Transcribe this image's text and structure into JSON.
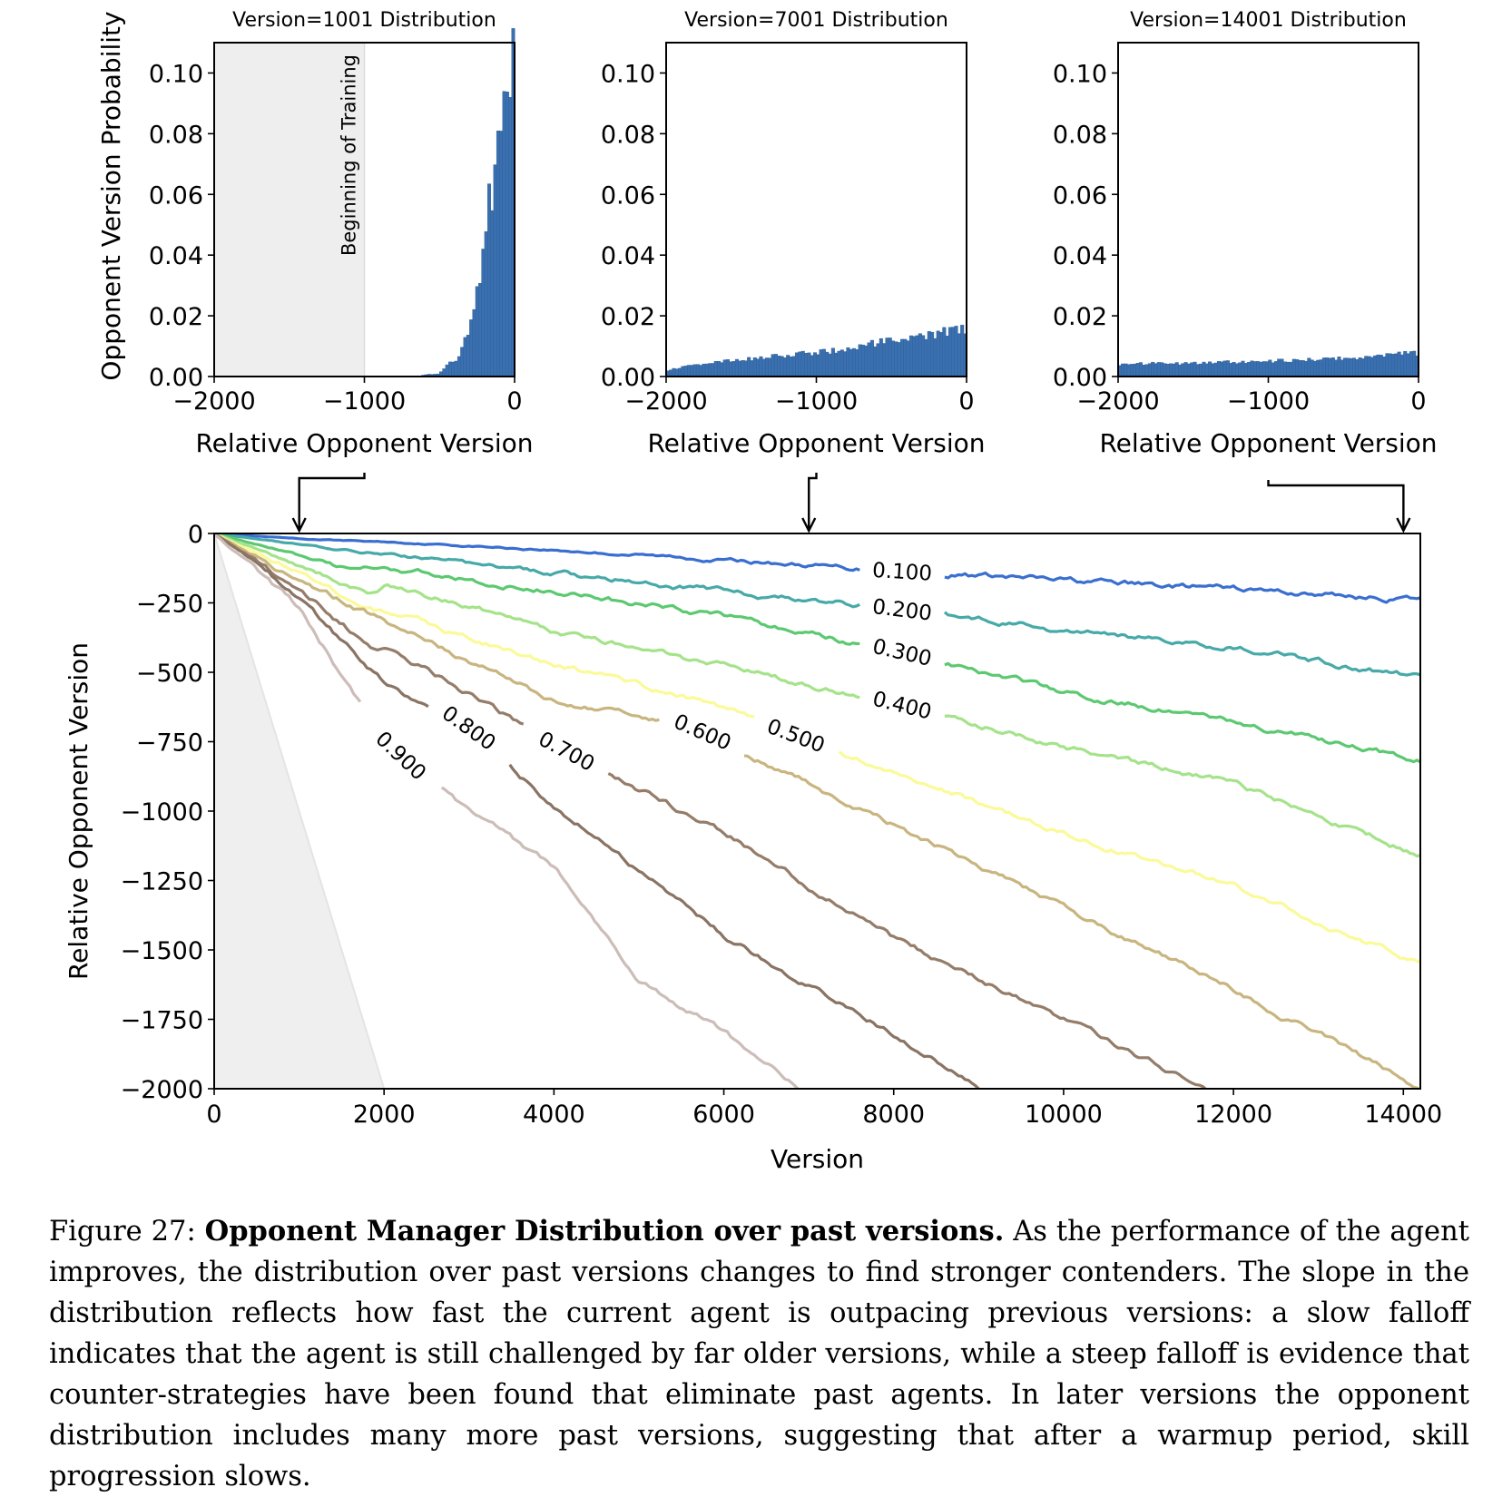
{
  "chart_data": [
    {
      "type": "bar",
      "title": "Version=1001 Distribution",
      "xlabel": "Relative Opponent Version",
      "ylabel": "Opponent Version Probability",
      "xlim": [
        -2000,
        0
      ],
      "ylim": [
        0,
        0.11
      ],
      "xticks": [
        "−2000",
        "−1000",
        "0"
      ],
      "yticks": [
        "0.00",
        "0.02",
        "0.04",
        "0.06",
        "0.08",
        "0.10"
      ],
      "bar_color": "#3a70b0",
      "shaded_region": {
        "x": [
          -2000,
          -1000
        ],
        "label": "Beginning of Training"
      },
      "x": [
        -1000,
        -600,
        -550,
        -500,
        -480,
        -460,
        -440,
        -420,
        -400,
        -380,
        -360,
        -340,
        -320,
        -300,
        -280,
        -260,
        -240,
        -220,
        -200,
        -180,
        -160,
        -140,
        -120,
        -100,
        -80,
        -60,
        -40,
        -20
      ],
      "values": [
        0.0,
        0.0005,
        0.0008,
        0.001,
        0.002,
        0.003,
        0.004,
        0.005,
        0.005,
        0.006,
        0.008,
        0.01,
        0.013,
        0.017,
        0.022,
        0.028,
        0.035,
        0.032,
        0.045,
        0.058,
        0.057,
        0.06,
        0.066,
        0.08,
        0.09,
        0.092,
        0.095,
        0.104
      ]
    },
    {
      "type": "bar",
      "title": "Version=7001 Distribution",
      "xlabel": "Relative Opponent Version",
      "xlim": [
        -2000,
        0
      ],
      "ylim": [
        0,
        0.11
      ],
      "xticks": [
        "−2000",
        "−1000",
        "0"
      ],
      "yticks": [
        "0.00",
        "0.02",
        "0.04",
        "0.06",
        "0.08",
        "0.10"
      ],
      "bar_color": "#3a70b0",
      "x": [
        -2000,
        -1800,
        -1600,
        -1400,
        -1200,
        -1000,
        -800,
        -600,
        -400,
        -200,
        -20
      ],
      "values": [
        0.002,
        0.004,
        0.005,
        0.006,
        0.007,
        0.008,
        0.009,
        0.011,
        0.012,
        0.014,
        0.016
      ]
    },
    {
      "type": "bar",
      "title": "Version=14001 Distribution",
      "xlabel": "Relative Opponent Version",
      "xlim": [
        -2000,
        0
      ],
      "ylim": [
        0,
        0.11
      ],
      "xticks": [
        "−2000",
        "−1000",
        "0"
      ],
      "yticks": [
        "0.00",
        "0.02",
        "0.04",
        "0.06",
        "0.08",
        "0.10"
      ],
      "bar_color": "#3a70b0",
      "x": [
        -2000,
        -1500,
        -1000,
        -500,
        -20
      ],
      "values": [
        0.004,
        0.0045,
        0.005,
        0.006,
        0.0078
      ]
    },
    {
      "type": "line",
      "subtype": "contour",
      "xlabel": "Version",
      "ylabel": "Relative Opponent Version",
      "xlim": [
        0,
        14200
      ],
      "ylim": [
        -2000,
        0
      ],
      "xticks": [
        "0",
        "2000",
        "4000",
        "6000",
        "8000",
        "10000",
        "12000",
        "14000"
      ],
      "yticks": [
        "0",
        "−250",
        "−500",
        "−750",
        "−1000",
        "−1250",
        "−1500",
        "−1750",
        "−2000"
      ],
      "shaded_region": {
        "x": [
          0,
          2000
        ],
        "y": [
          0,
          -2000
        ]
      },
      "pointers": [
        1001,
        7001,
        14001
      ],
      "series": [
        {
          "name": "0.100",
          "color": "#3a6fd0",
          "label_x": 8100,
          "x": [
            0,
            1000,
            2000,
            4000,
            6000,
            8000,
            10000,
            12000,
            14200
          ],
          "y": [
            0,
            -20,
            -30,
            -60,
            -95,
            -135,
            -170,
            -200,
            -240
          ]
        },
        {
          "name": "0.200",
          "color": "#47aaa8",
          "label_x": 8100,
          "x": [
            0,
            1000,
            2000,
            4000,
            6000,
            8000,
            10000,
            12000,
            14200
          ],
          "y": [
            0,
            -40,
            -75,
            -140,
            -210,
            -270,
            -350,
            -410,
            -520
          ]
        },
        {
          "name": "0.300",
          "color": "#5cc971",
          "label_x": 8100,
          "x": [
            0,
            1000,
            1700,
            2000,
            4000,
            6000,
            8000,
            10000,
            12000,
            14200
          ],
          "y": [
            0,
            -80,
            -140,
            -120,
            -210,
            -300,
            -420,
            -570,
            -680,
            -820
          ]
        },
        {
          "name": "0.400",
          "color": "#a5e38b",
          "label_x": 8100,
          "x": [
            0,
            1000,
            1800,
            2000,
            4000,
            6000,
            8000,
            10000,
            12000,
            14200
          ],
          "y": [
            0,
            -110,
            -200,
            -180,
            -350,
            -480,
            -610,
            -770,
            -900,
            -1160
          ]
        },
        {
          "name": "0.500",
          "color": "#fafa9a",
          "label_x": 6850,
          "x": [
            0,
            1000,
            1800,
            2000,
            4000,
            6000,
            8000,
            10000,
            12000,
            14200
          ],
          "y": [
            0,
            -140,
            -260,
            -280,
            -470,
            -630,
            -860,
            -1080,
            -1270,
            -1550
          ]
        },
        {
          "name": "0.600",
          "color": "#c8b57f",
          "label_x": 5750,
          "x": [
            0,
            1000,
            1900,
            2000,
            4000,
            5500,
            6000,
            8000,
            10000,
            12000,
            14200
          ],
          "y": [
            0,
            -170,
            -300,
            -320,
            -600,
            -680,
            -750,
            -1050,
            -1350,
            -1640,
            -2000
          ]
        },
        {
          "name": "0.700",
          "color": "#957d6a",
          "label_x": 4150,
          "x": [
            0,
            1000,
            1900,
            2000,
            4000,
            6000,
            8000,
            10000,
            11700
          ],
          "y": [
            0,
            -200,
            -420,
            -400,
            -760,
            -1080,
            -1460,
            -1750,
            -2000
          ]
        },
        {
          "name": "0.800",
          "color": "#8a7464",
          "label_x": 3000,
          "x": [
            0,
            1000,
            2000,
            3000,
            4000,
            6000,
            8000,
            9000
          ],
          "y": [
            0,
            -230,
            -540,
            -700,
            -980,
            -1450,
            -1800,
            -2000
          ]
        },
        {
          "name": "0.900",
          "color": "#ccbdb9",
          "label_x": 2200,
          "x": [
            0,
            1000,
            2000,
            3000,
            4000,
            5000,
            6000,
            6900
          ],
          "y": [
            0,
            -270,
            -750,
            -1000,
            -1200,
            -1600,
            -1800,
            -2000
          ]
        }
      ]
    }
  ],
  "caption": {
    "label": "Figure 27:",
    "title": "Opponent Manager Distribution over past versions.",
    "text": "As the performance of the agent improves, the distribution over past versions changes to find stronger contenders. The slope in the distribution reflects how fast the current agent is outpacing previous versions: a slow falloff indicates that the agent is still challenged by far older versions, while a steep falloff is evidence that counter-strategies have been found that eliminate past agents. In later versions the opponent distribution includes many more past versions, suggesting that after a warmup period, skill progression slows."
  }
}
